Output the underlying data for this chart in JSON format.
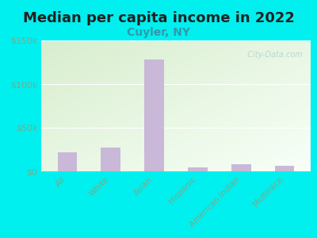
{
  "title": "Median per capita income in 2022",
  "subtitle": "Cuyler, NY",
  "categories": [
    "All",
    "White",
    "Asian",
    "Hispanic",
    "American Indian",
    "Multirace"
  ],
  "values": [
    22000,
    27000,
    128000,
    5000,
    8000,
    6000
  ],
  "bar_color": "#c9b8d8",
  "background_outer": "#00efef",
  "background_plot_top_left": "#d8eece",
  "background_plot_bottom_right": "#f8fff8",
  "title_fontsize": 13,
  "title_color": "#222222",
  "subtitle_fontsize": 10,
  "subtitle_color": "#3399aa",
  "tick_color": "#7aaa8a",
  "watermark": "  City-Data.com",
  "ylim": [
    0,
    150000
  ],
  "yticks": [
    0,
    50000,
    100000,
    150000
  ],
  "ytick_labels": [
    "$0",
    "$50k",
    "$100k",
    "$150k"
  ]
}
